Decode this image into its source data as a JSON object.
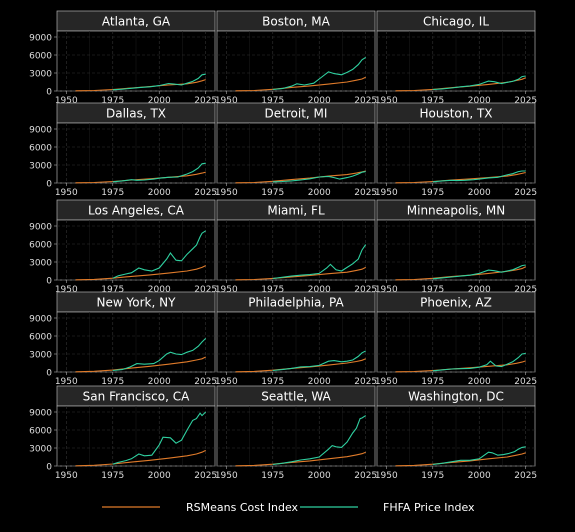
{
  "chart_data": {
    "type": "line",
    "facet": {
      "rows": 5,
      "cols": 3
    },
    "xlim": [
      1945,
      2030
    ],
    "ylim": [
      0,
      10000
    ],
    "x_ticks": [
      1950,
      1975,
      2000,
      2025
    ],
    "y_ticks": [
      0,
      3000,
      6000,
      9000
    ],
    "grid": true,
    "legend_position": "bottom",
    "colors": {
      "rsmeans": "#e07b2a",
      "fhfa": "#2fd0a0"
    },
    "legend": [
      "RSMeans Cost Index",
      "FHFA Price Index"
    ],
    "series_keys": [
      "rsmeans",
      "fhfa"
    ],
    "panels": [
      {
        "title": "Atlanta, GA",
        "rsmeans": {
          "x": [
            1955,
            1965,
            1975,
            1985,
            1995,
            2005,
            2015,
            2020,
            2023,
            2025
          ],
          "y": [
            30,
            80,
            250,
            500,
            750,
            1000,
            1200,
            1450,
            1700,
            1900
          ]
        },
        "fhfa": {
          "x": [
            1975,
            1980,
            1985,
            1990,
            1995,
            2000,
            2005,
            2008,
            2012,
            2015,
            2018,
            2021,
            2023,
            2025
          ],
          "y": [
            200,
            300,
            450,
            600,
            700,
            900,
            1250,
            1150,
            1000,
            1300,
            1600,
            2100,
            2700,
            2800
          ]
        }
      },
      {
        "title": "Boston, MA",
        "rsmeans": {
          "x": [
            1955,
            1965,
            1975,
            1985,
            1995,
            2005,
            2015,
            2020,
            2023,
            2025
          ],
          "y": [
            30,
            90,
            280,
            600,
            850,
            1150,
            1500,
            1800,
            2000,
            2300
          ]
        },
        "fhfa": {
          "x": [
            1975,
            1980,
            1985,
            1988,
            1992,
            1997,
            2000,
            2005,
            2008,
            2012,
            2015,
            2018,
            2021,
            2023,
            2025
          ],
          "y": [
            250,
            400,
            800,
            1200,
            1000,
            1300,
            2000,
            3200,
            2900,
            2700,
            3100,
            3600,
            4400,
            5200,
            5600
          ]
        }
      },
      {
        "title": "Chicago, IL",
        "rsmeans": {
          "x": [
            1955,
            1965,
            1975,
            1985,
            1995,
            2005,
            2015,
            2020,
            2023,
            2025
          ],
          "y": [
            30,
            90,
            270,
            550,
            800,
            1100,
            1450,
            1750,
            1950,
            2200
          ]
        },
        "fhfa": {
          "x": [
            1975,
            1980,
            1985,
            1990,
            1995,
            2000,
            2005,
            2008,
            2012,
            2015,
            2018,
            2021,
            2023,
            2025
          ],
          "y": [
            250,
            350,
            500,
            700,
            850,
            1100,
            1650,
            1550,
            1250,
            1450,
            1600,
            1950,
            2400,
            2500
          ]
        }
      },
      {
        "title": "Dallas, TX",
        "rsmeans": {
          "x": [
            1955,
            1965,
            1975,
            1985,
            1995,
            2005,
            2015,
            2020,
            2023,
            2025
          ],
          "y": [
            30,
            80,
            250,
            500,
            700,
            950,
            1200,
            1450,
            1650,
            1800
          ]
        },
        "fhfa": {
          "x": [
            1975,
            1980,
            1985,
            1988,
            1992,
            1997,
            2000,
            2005,
            2010,
            2015,
            2018,
            2021,
            2023,
            2025
          ],
          "y": [
            200,
            350,
            550,
            450,
            500,
            650,
            800,
            950,
            1000,
            1500,
            1900,
            2500,
            3200,
            3300
          ]
        }
      },
      {
        "title": "Detroit, MI",
        "rsmeans": {
          "x": [
            1955,
            1965,
            1975,
            1985,
            1995,
            2005,
            2015,
            2020,
            2023,
            2025
          ],
          "y": [
            30,
            90,
            280,
            560,
            820,
            1150,
            1400,
            1650,
            1850,
            2000
          ]
        },
        "fhfa": {
          "x": [
            1975,
            1980,
            1985,
            1990,
            1995,
            2000,
            2005,
            2008,
            2011,
            2015,
            2018,
            2021,
            2023,
            2025
          ],
          "y": [
            200,
            250,
            350,
            500,
            700,
            1000,
            1100,
            900,
            650,
            900,
            1150,
            1500,
            1800,
            1900
          ]
        }
      },
      {
        "title": "Houston, TX",
        "rsmeans": {
          "x": [
            1955,
            1965,
            1975,
            1985,
            1995,
            2005,
            2015,
            2020,
            2023,
            2025
          ],
          "y": [
            30,
            80,
            250,
            480,
            680,
            900,
            1150,
            1400,
            1600,
            1750
          ]
        },
        "fhfa": {
          "x": [
            1975,
            1980,
            1985,
            1988,
            1992,
            1997,
            2000,
            2005,
            2010,
            2015,
            2018,
            2021,
            2023,
            2025
          ],
          "y": [
            200,
            350,
            450,
            400,
            450,
            550,
            650,
            850,
            950,
            1350,
            1550,
            1900,
            2000,
            2000
          ]
        }
      },
      {
        "title": "Los Angeles, CA",
        "rsmeans": {
          "x": [
            1955,
            1965,
            1975,
            1985,
            1995,
            2005,
            2015,
            2020,
            2023,
            2025
          ],
          "y": [
            40,
            100,
            300,
            600,
            850,
            1150,
            1500,
            1800,
            2100,
            2400
          ]
        },
        "fhfa": {
          "x": [
            1975,
            1978,
            1982,
            1985,
            1989,
            1992,
            1996,
            2000,
            2004,
            2006,
            2009,
            2012,
            2015,
            2018,
            2020,
            2022,
            2023,
            2025
          ],
          "y": [
            300,
            700,
            1000,
            1200,
            2000,
            1700,
            1500,
            2000,
            3500,
            4500,
            3300,
            3200,
            4300,
            5200,
            5800,
            7200,
            7800,
            8200
          ]
        }
      },
      {
        "title": "Miami, FL",
        "rsmeans": {
          "x": [
            1955,
            1965,
            1975,
            1985,
            1995,
            2005,
            2015,
            2020,
            2023,
            2025
          ],
          "y": [
            30,
            85,
            260,
            520,
            750,
            1050,
            1300,
            1600,
            1800,
            2100
          ]
        },
        "fhfa": {
          "x": [
            1975,
            1980,
            1985,
            1990,
            1995,
            2000,
            2004,
            2006,
            2009,
            2012,
            2015,
            2018,
            2021,
            2023,
            2025
          ],
          "y": [
            250,
            450,
            650,
            800,
            900,
            1100,
            2000,
            2600,
            1700,
            1500,
            2100,
            2700,
            3500,
            5000,
            5900
          ]
        }
      },
      {
        "title": "Minneapolis, MN",
        "rsmeans": {
          "x": [
            1955,
            1965,
            1975,
            1985,
            1995,
            2005,
            2015,
            2020,
            2023,
            2025
          ],
          "y": [
            30,
            90,
            280,
            560,
            800,
            1100,
            1450,
            1700,
            1900,
            2200
          ]
        },
        "fhfa": {
          "x": [
            1975,
            1980,
            1985,
            1990,
            1995,
            2000,
            2005,
            2008,
            2012,
            2015,
            2018,
            2021,
            2023,
            2025
          ],
          "y": [
            200,
            350,
            500,
            650,
            800,
            1100,
            1650,
            1550,
            1300,
            1500,
            1700,
            2100,
            2400,
            2500
          ]
        }
      },
      {
        "title": "New York, NY",
        "rsmeans": {
          "x": [
            1955,
            1965,
            1975,
            1985,
            1995,
            2005,
            2015,
            2020,
            2023,
            2025
          ],
          "y": [
            40,
            110,
            320,
            650,
            950,
            1300,
            1700,
            2000,
            2200,
            2500
          ]
        },
        "fhfa": {
          "x": [
            1975,
            1980,
            1984,
            1988,
            1992,
            1997,
            2000,
            2004,
            2006,
            2009,
            2012,
            2015,
            2018,
            2021,
            2023,
            2025
          ],
          "y": [
            250,
            400,
            800,
            1400,
            1300,
            1400,
            1900,
            3000,
            3300,
            3000,
            2900,
            3300,
            3600,
            4300,
            5000,
            5600
          ]
        }
      },
      {
        "title": "Philadelphia, PA",
        "rsmeans": {
          "x": [
            1955,
            1965,
            1975,
            1985,
            1995,
            2005,
            2015,
            2020,
            2023,
            2025
          ],
          "y": [
            35,
            100,
            300,
            600,
            850,
            1150,
            1500,
            1750,
            1950,
            2200
          ]
        },
        "fhfa": {
          "x": [
            1975,
            1980,
            1985,
            1990,
            1995,
            2000,
            2005,
            2008,
            2012,
            2015,
            2018,
            2021,
            2023,
            2025
          ],
          "y": [
            250,
            400,
            600,
            850,
            900,
            1100,
            1800,
            1900,
            1700,
            1800,
            2000,
            2600,
            3200,
            3500
          ]
        }
      },
      {
        "title": "Phoenix, AZ",
        "rsmeans": {
          "x": [
            1955,
            1965,
            1975,
            1985,
            1995,
            2005,
            2015,
            2020,
            2023,
            2025
          ],
          "y": [
            30,
            80,
            250,
            480,
            700,
            950,
            1200,
            1450,
            1650,
            1850
          ]
        },
        "fhfa": {
          "x": [
            1975,
            1980,
            1985,
            1990,
            1995,
            2000,
            2004,
            2006,
            2009,
            2012,
            2015,
            2018,
            2021,
            2023,
            2025
          ],
          "y": [
            200,
            350,
            500,
            550,
            600,
            800,
            1200,
            1800,
            1000,
            900,
            1300,
            1700,
            2400,
            3000,
            3100
          ]
        }
      },
      {
        "title": "San Francisco, CA",
        "rsmeans": {
          "x": [
            1955,
            1965,
            1975,
            1985,
            1995,
            2005,
            2015,
            2020,
            2023,
            2025
          ],
          "y": [
            40,
            110,
            330,
            650,
            950,
            1300,
            1700,
            2000,
            2300,
            2600
          ]
        },
        "fhfa": {
          "x": [
            1975,
            1978,
            1982,
            1985,
            1989,
            1992,
            1996,
            2000,
            2002,
            2006,
            2009,
            2012,
            2015,
            2018,
            2020,
            2022,
            2023,
            2025
          ],
          "y": [
            300,
            600,
            900,
            1200,
            2000,
            1700,
            1800,
            3500,
            4800,
            4700,
            3800,
            4300,
            6000,
            7600,
            7900,
            8800,
            8400,
            9000
          ]
        }
      },
      {
        "title": "Seattle, WA",
        "rsmeans": {
          "x": [
            1955,
            1965,
            1975,
            1985,
            1995,
            2005,
            2015,
            2020,
            2023,
            2025
          ],
          "y": [
            35,
            100,
            300,
            600,
            850,
            1200,
            1550,
            1850,
            2050,
            2300
          ]
        },
        "fhfa": {
          "x": [
            1975,
            1980,
            1985,
            1990,
            1995,
            2000,
            2005,
            2007,
            2009,
            2012,
            2015,
            2018,
            2020,
            2022,
            2023,
            2025
          ],
          "y": [
            250,
            450,
            700,
            1000,
            1200,
            1500,
            2800,
            3400,
            3200,
            3100,
            4000,
            5500,
            6300,
            7900,
            8000,
            8400
          ]
        }
      },
      {
        "title": "Washington, DC",
        "rsmeans": {
          "x": [
            1955,
            1965,
            1975,
            1985,
            1995,
            2005,
            2015,
            2020,
            2023,
            2025
          ],
          "y": [
            35,
            100,
            300,
            600,
            850,
            1200,
            1500,
            1800,
            2000,
            2200
          ]
        },
        "fhfa": {
          "x": [
            1975,
            1980,
            1985,
            1990,
            1995,
            2000,
            2005,
            2007,
            2010,
            2013,
            2016,
            2019,
            2021,
            2023,
            2025
          ],
          "y": [
            250,
            450,
            700,
            950,
            950,
            1200,
            2300,
            2200,
            1800,
            1900,
            2100,
            2400,
            2800,
            3100,
            3200
          ]
        }
      }
    ]
  }
}
